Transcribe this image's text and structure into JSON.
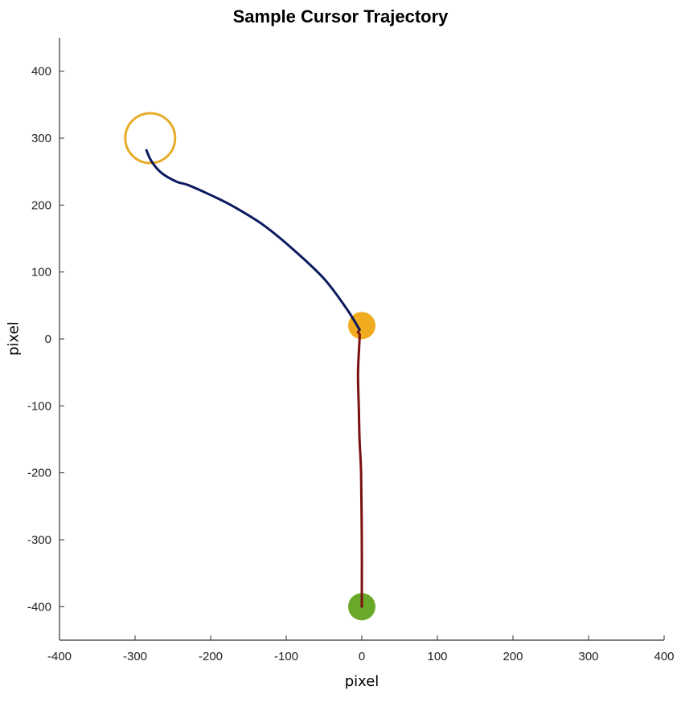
{
  "chart_data": {
    "type": "line",
    "title": "Sample Cursor Trajectory",
    "xlabel": "pixel",
    "ylabel": "pixel",
    "xlim": [
      -400,
      400
    ],
    "ylim": [
      -450,
      450
    ],
    "xticks": [
      -400,
      -300,
      -200,
      -100,
      0,
      100,
      200,
      300,
      400
    ],
    "yticks": [
      -400,
      -300,
      -200,
      -100,
      0,
      100,
      200,
      300,
      400
    ],
    "grid": false,
    "series": [
      {
        "color": "#7a1010",
        "x": [
          0,
          0,
          -1,
          -3,
          -4,
          -5,
          -3,
          -3,
          -5,
          -4,
          -3
        ],
        "y": [
          -400,
          -300,
          -200,
          -150,
          -100,
          -50,
          0,
          7,
          10,
          12,
          14
        ]
      },
      {
        "color": "#0d1a5e",
        "x": [
          -3,
          -20,
          -50,
          -90,
          -130,
          -170,
          -200,
          -230,
          -245,
          -265,
          -278,
          -285
        ],
        "y": [
          14,
          45,
          90,
          133,
          170,
          198,
          215,
          230,
          235,
          248,
          265,
          282
        ]
      }
    ],
    "markers": [
      {
        "x": 0,
        "y": -400,
        "color": "#6aa829",
        "style": "filled"
      },
      {
        "x": 0,
        "y": 20,
        "color": "#f0ac1e",
        "style": "filled"
      },
      {
        "x": -280,
        "y": 300,
        "color": "#e8ac2a",
        "style": "ring"
      }
    ]
  }
}
